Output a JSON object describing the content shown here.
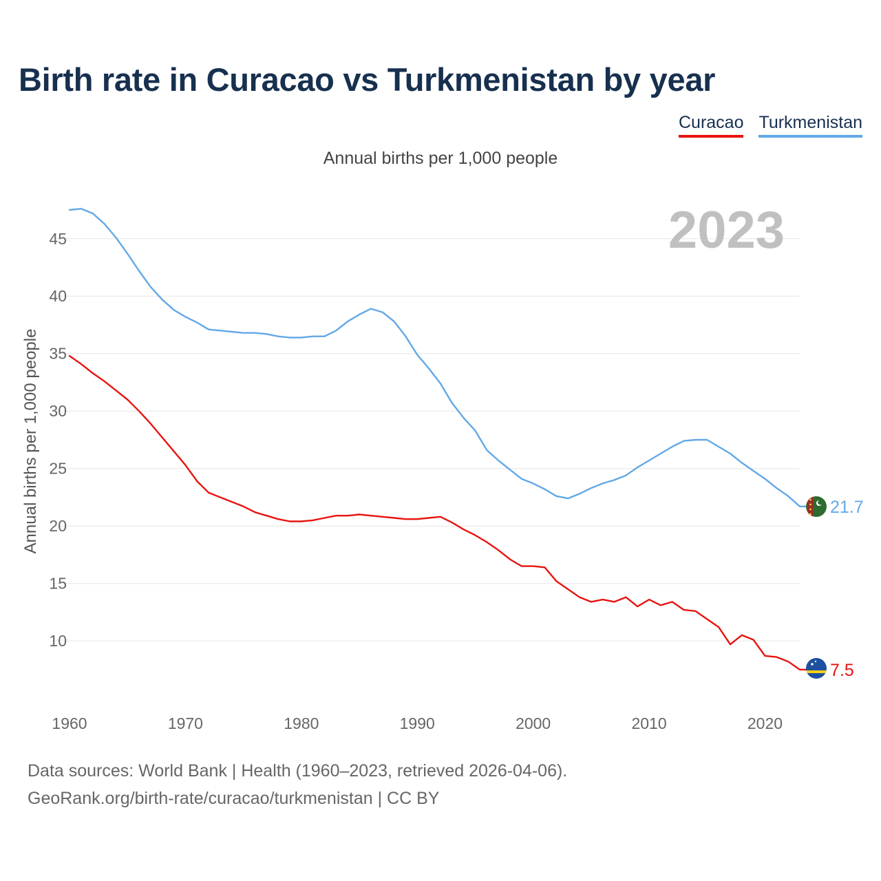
{
  "title": "Birth rate in Curacao vs Turkmenistan by year",
  "legend": [
    {
      "name": "Curacao",
      "color": "#e8130f"
    },
    {
      "name": "Turkmenistan",
      "color": "#62a8e6"
    }
  ],
  "subtitle": "Annual births per 1,000 people",
  "year_label": "2023",
  "footer": {
    "source": "Data sources: World Bank | Health (1960–2023, retrieved 2026-04-06).",
    "credit": "GeoRank.org/birth-rate/curacao/turkmenistan | CC BY"
  },
  "chart_data": {
    "type": "line",
    "title": "Birth rate in Curacao vs Turkmenistan by year",
    "ylabel": "Annual births per 1,000 people",
    "xlabel": "",
    "xlim": [
      1960,
      2023
    ],
    "ylim": [
      5.1,
      47.8
    ],
    "yticks": [
      10,
      15,
      20,
      25,
      30,
      35,
      40,
      45
    ],
    "xticks": [
      1960,
      1970,
      1980,
      1990,
      2000,
      2010,
      2020
    ],
    "grid": true,
    "x": [
      1960,
      1961,
      1962,
      1963,
      1964,
      1965,
      1966,
      1967,
      1968,
      1969,
      1970,
      1971,
      1972,
      1973,
      1974,
      1975,
      1976,
      1977,
      1978,
      1979,
      1980,
      1981,
      1982,
      1983,
      1984,
      1985,
      1986,
      1987,
      1988,
      1989,
      1990,
      1991,
      1992,
      1993,
      1994,
      1995,
      1996,
      1997,
      1998,
      1999,
      2000,
      2001,
      2002,
      2003,
      2004,
      2005,
      2006,
      2007,
      2008,
      2009,
      2010,
      2011,
      2012,
      2013,
      2014,
      2015,
      2016,
      2017,
      2018,
      2019,
      2020,
      2021,
      2022,
      2023
    ],
    "series": [
      {
        "name": "Curacao",
        "color": "#e8130f",
        "end_label": "7.5",
        "values": [
          34.8,
          34.1,
          33.3,
          32.6,
          31.8,
          31.0,
          30.0,
          28.9,
          27.7,
          26.5,
          25.3,
          23.9,
          22.9,
          22.5,
          22.1,
          21.7,
          21.2,
          20.9,
          20.6,
          20.4,
          20.4,
          20.5,
          20.7,
          20.9,
          20.9,
          21.0,
          20.9,
          20.8,
          20.7,
          20.6,
          20.6,
          20.7,
          20.8,
          20.3,
          19.7,
          19.2,
          18.6,
          17.9,
          17.1,
          16.5,
          16.5,
          16.4,
          15.2,
          14.5,
          13.8,
          13.4,
          13.6,
          13.4,
          13.8,
          13.0,
          13.6,
          13.1,
          13.4,
          12.7,
          12.6,
          11.9,
          11.2,
          9.7,
          10.5,
          10.1,
          8.7,
          8.6,
          8.2,
          7.5
        ]
      },
      {
        "name": "Turkmenistan",
        "color": "#62a8e6",
        "end_label": "21.7",
        "values": [
          47.5,
          47.6,
          47.2,
          46.3,
          45.1,
          43.7,
          42.2,
          40.8,
          39.7,
          38.8,
          38.2,
          37.7,
          37.1,
          37.0,
          36.9,
          36.8,
          36.8,
          36.7,
          36.5,
          36.4,
          36.4,
          36.5,
          36.5,
          37.0,
          37.8,
          38.4,
          38.9,
          38.6,
          37.8,
          36.5,
          34.9,
          33.7,
          32.4,
          30.7,
          29.4,
          28.3,
          26.6,
          25.7,
          24.9,
          24.1,
          23.7,
          23.2,
          22.6,
          22.4,
          22.8,
          23.3,
          23.7,
          24.0,
          24.4,
          25.1,
          25.7,
          26.3,
          26.9,
          27.4,
          27.5,
          27.5,
          26.9,
          26.3,
          25.5,
          24.8,
          24.1,
          23.3,
          22.6,
          21.7
        ]
      }
    ]
  }
}
